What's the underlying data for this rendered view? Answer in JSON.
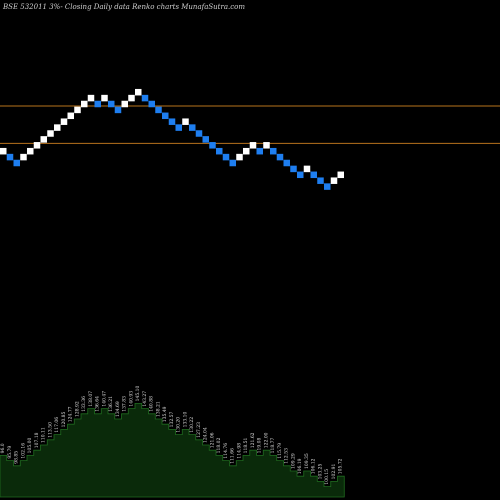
{
  "chart_data": {
    "type": "renko",
    "title": "BSE 532011 3%-  Closing Daily data  Renko  charts MunafaSutra.com",
    "colors": {
      "background": "#000000",
      "up_brick": "#ffffff",
      "down_brick": "#1e7ef0",
      "reference_line": "#b8731d",
      "volume_fill": "#0a2a0a",
      "volume_stroke": "#1f6b1f",
      "label_text": "#e0e0e0"
    },
    "price_axis_levels": {
      "top_level": 26,
      "bottom_level": 0
    },
    "reference_levels": [
      20,
      14
    ],
    "bricks": [
      {
        "dir": "up",
        "level": 12
      },
      {
        "dir": "down",
        "level": 11
      },
      {
        "dir": "down",
        "level": 10
      },
      {
        "dir": "up",
        "level": 11
      },
      {
        "dir": "up",
        "level": 12
      },
      {
        "dir": "up",
        "level": 13
      },
      {
        "dir": "up",
        "level": 14
      },
      {
        "dir": "up",
        "level": 15
      },
      {
        "dir": "up",
        "level": 16
      },
      {
        "dir": "up",
        "level": 17
      },
      {
        "dir": "up",
        "level": 18
      },
      {
        "dir": "up",
        "level": 19
      },
      {
        "dir": "up",
        "level": 20
      },
      {
        "dir": "up",
        "level": 21
      },
      {
        "dir": "down",
        "level": 20
      },
      {
        "dir": "up",
        "level": 21
      },
      {
        "dir": "down",
        "level": 20
      },
      {
        "dir": "down",
        "level": 19
      },
      {
        "dir": "up",
        "level": 20
      },
      {
        "dir": "up",
        "level": 21
      },
      {
        "dir": "up",
        "level": 22
      },
      {
        "dir": "down",
        "level": 21
      },
      {
        "dir": "down",
        "level": 20
      },
      {
        "dir": "down",
        "level": 19
      },
      {
        "dir": "down",
        "level": 18
      },
      {
        "dir": "down",
        "level": 17
      },
      {
        "dir": "down",
        "level": 16
      },
      {
        "dir": "up",
        "level": 17
      },
      {
        "dir": "down",
        "level": 16
      },
      {
        "dir": "down",
        "level": 15
      },
      {
        "dir": "down",
        "level": 14
      },
      {
        "dir": "down",
        "level": 13
      },
      {
        "dir": "down",
        "level": 12
      },
      {
        "dir": "down",
        "level": 11
      },
      {
        "dir": "down",
        "level": 10
      },
      {
        "dir": "up",
        "level": 11
      },
      {
        "dir": "up",
        "level": 12
      },
      {
        "dir": "up",
        "level": 13
      },
      {
        "dir": "down",
        "level": 12
      },
      {
        "dir": "up",
        "level": 13
      },
      {
        "dir": "down",
        "level": 12
      },
      {
        "dir": "down",
        "level": 11
      },
      {
        "dir": "down",
        "level": 10
      },
      {
        "dir": "down",
        "level": 9
      },
      {
        "dir": "down",
        "level": 8
      },
      {
        "dir": "up",
        "level": 9
      },
      {
        "dir": "down",
        "level": 8
      },
      {
        "dir": "down",
        "level": 7
      },
      {
        "dir": "down",
        "level": 6
      },
      {
        "dir": "up",
        "level": 7
      },
      {
        "dir": "up",
        "level": 8
      }
    ],
    "volume_labels": [
      "96.0",
      "95.79",
      "98.85",
      "102.16",
      "105.00",
      "107.18",
      "110.11",
      "113.50",
      "117.06",
      "120.85",
      "124.77",
      "128.92",
      "133.36",
      "138.07",
      "136.64",
      "140.47",
      "136.21",
      "134.69",
      "137.83",
      "140.93",
      "145.10",
      "143.27",
      "140.88",
      "138.21",
      "135.49",
      "132.57",
      "130.20",
      "133.10",
      "130.22",
      "127.23",
      "124.04",
      "121.06",
      "118.02",
      "114.76",
      "111.66",
      "114.98",
      "118.51",
      "121.62",
      "119.08",
      "122.00",
      "118.77",
      "115.79",
      "112.53",
      "109.29",
      "106.19",
      "109.35",
      "106.12",
      "103.25",
      "100.15",
      "102.91",
      "105.72"
    ]
  }
}
